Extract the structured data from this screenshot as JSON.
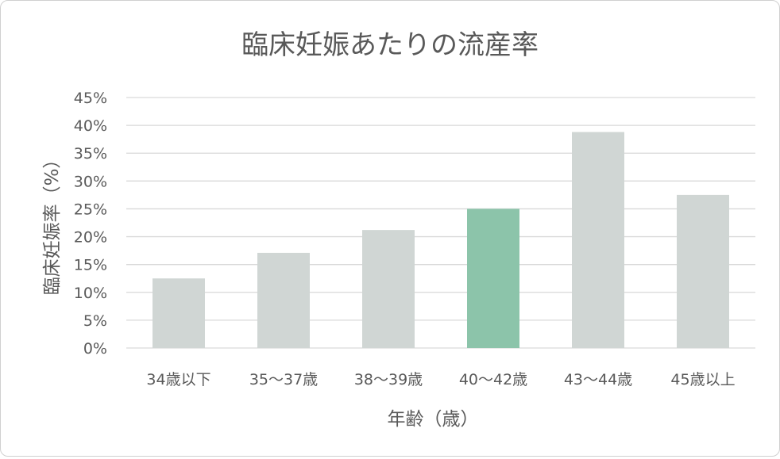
{
  "chart_data": {
    "type": "bar",
    "title": "臨床妊娠あたりの流産率",
    "xlabel": "年齢（歳）",
    "ylabel": "臨床妊娠率（%）",
    "categories": [
      "34歳以下",
      "35～37歳",
      "38～39歳",
      "40～42歳",
      "43～44歳",
      "45歳以上"
    ],
    "values": [
      12.5,
      17.1,
      21.2,
      25.0,
      38.8,
      27.5
    ],
    "highlight_index": 3,
    "yticks": [
      "0%",
      "5%",
      "10%",
      "15%",
      "20%",
      "25%",
      "30%",
      "35%",
      "40%",
      "45%"
    ],
    "ylim": [
      0,
      45
    ],
    "grid": true,
    "colors": {
      "bar": "#d0d6d4",
      "highlight": "#8cc4aa",
      "grid": "#d9d9d9",
      "text": "#595959",
      "title": "#595959"
    }
  }
}
